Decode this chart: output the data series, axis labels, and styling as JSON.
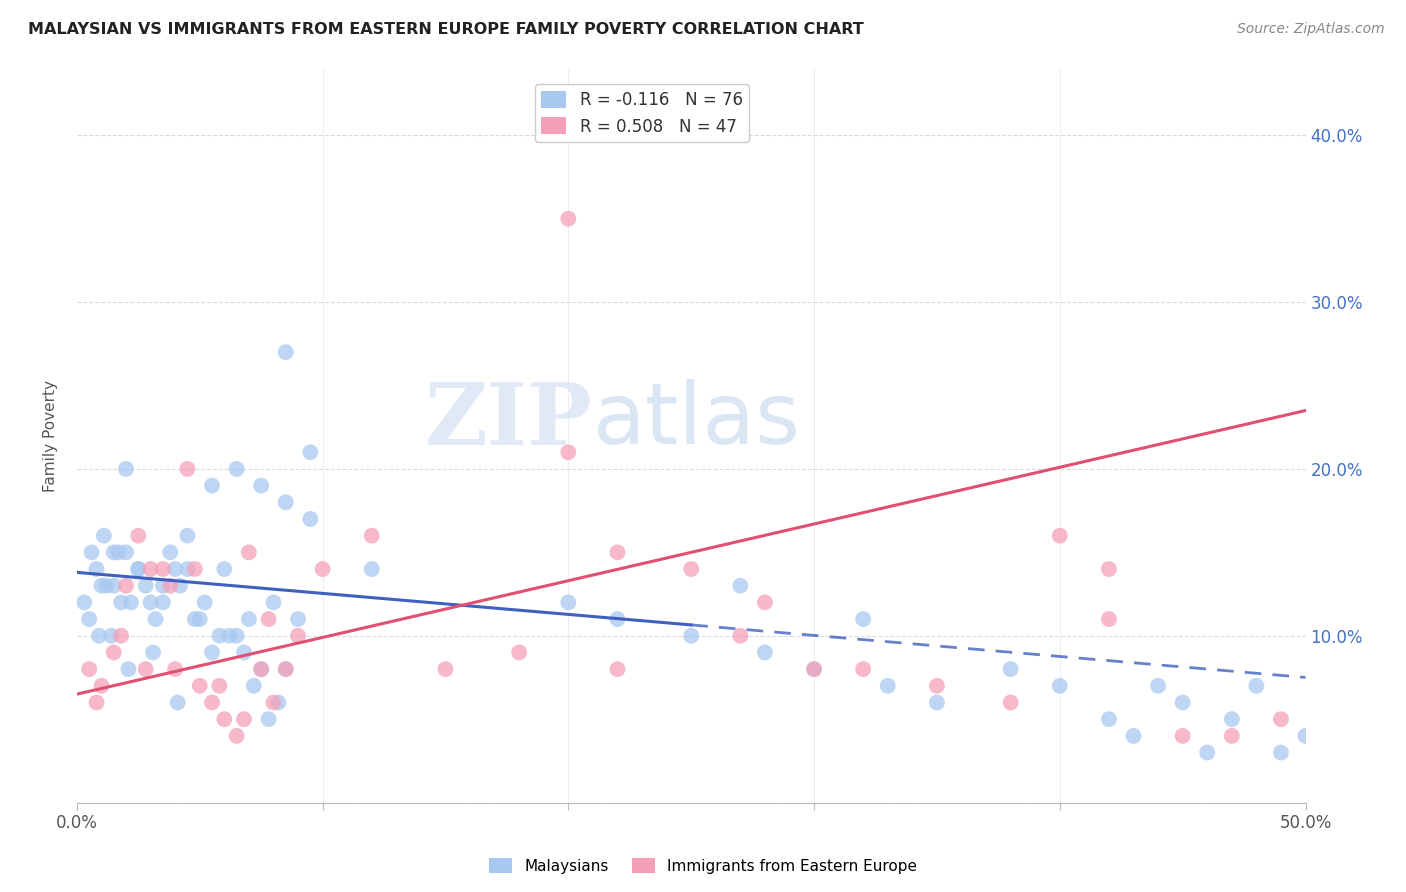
{
  "title": "MALAYSIAN VS IMMIGRANTS FROM EASTERN EUROPE FAMILY POVERTY CORRELATION CHART",
  "source": "Source: ZipAtlas.com",
  "ylabel": "Family Poverty",
  "legend_label1": "R = -0.116   N = 76",
  "legend_label2": "R = 0.508   N = 47",
  "legend_label_bottom1": "Malaysians",
  "legend_label_bottom2": "Immigrants from Eastern Europe",
  "color_blue": "#a8c8f0",
  "color_pink": "#f5a0b8",
  "color_blue_line": "#4060c0",
  "color_pink_line": "#e05070",
  "watermark_zip": "ZIP",
  "watermark_atlas": "atlas",
  "xmin": 0,
  "xmax": 50,
  "ymin": 0,
  "ymax": 44,
  "blue_line_x0": 0.0,
  "blue_line_y0": 13.8,
  "blue_line_x1": 50.0,
  "blue_line_y1": 7.5,
  "blue_solid_end_x": 25.0,
  "pink_line_x0": 0.0,
  "pink_line_y0": 6.5,
  "pink_line_x1": 50.0,
  "pink_line_y1": 23.5,
  "blue_points_x": [
    1.5,
    2.5,
    3.5,
    4.5,
    5.5,
    6.5,
    7.5,
    8.5,
    9.5,
    1.0,
    2.0,
    3.0,
    4.0,
    5.0,
    6.0,
    7.0,
    8.0,
    9.0,
    0.5,
    1.5,
    2.5,
    3.5,
    4.5,
    5.5,
    6.5,
    7.5,
    8.5,
    1.2,
    2.2,
    3.2,
    4.2,
    5.2,
    6.2,
    7.2,
    8.2,
    0.8,
    1.8,
    2.8,
    3.8,
    4.8,
    5.8,
    6.8,
    7.8,
    0.3,
    0.6,
    0.9,
    1.1,
    1.4,
    1.7,
    2.1,
    3.1,
    4.1,
    12.0,
    20.0,
    22.0,
    25.0,
    28.0,
    30.0,
    33.0,
    35.0,
    38.0,
    40.0,
    42.0,
    43.0,
    45.0,
    47.0,
    48.0,
    49.0,
    50.0,
    27.0,
    32.0,
    44.0,
    46.0,
    8.5,
    9.5,
    2.0
  ],
  "blue_points_y": [
    15,
    14,
    13,
    16,
    19,
    20,
    19,
    18,
    21,
    13,
    15,
    12,
    14,
    11,
    14,
    11,
    12,
    11,
    11,
    13,
    14,
    12,
    14,
    9,
    10,
    8,
    8,
    13,
    12,
    11,
    13,
    12,
    10,
    7,
    6,
    14,
    12,
    13,
    15,
    11,
    10,
    9,
    5,
    12,
    15,
    10,
    16,
    10,
    15,
    8,
    9,
    6,
    14,
    12,
    11,
    10,
    9,
    8,
    7,
    6,
    8,
    7,
    5,
    4,
    6,
    5,
    7,
    3,
    4,
    13,
    11,
    7,
    3,
    27,
    17,
    20
  ],
  "pink_points_x": [
    0.5,
    1.0,
    1.5,
    2.0,
    2.5,
    3.0,
    3.5,
    4.0,
    4.5,
    5.0,
    5.5,
    6.0,
    6.5,
    7.0,
    7.5,
    8.0,
    8.5,
    9.0,
    0.8,
    1.8,
    2.8,
    3.8,
    4.8,
    5.8,
    6.8,
    7.8,
    10.0,
    12.0,
    15.0,
    18.0,
    20.0,
    22.0,
    25.0,
    28.0,
    30.0,
    32.0,
    35.0,
    38.0,
    40.0,
    42.0,
    45.0,
    47.0,
    49.0,
    22.0,
    27.0,
    42.0,
    20.0
  ],
  "pink_points_y": [
    8,
    7,
    9,
    13,
    16,
    14,
    14,
    8,
    20,
    7,
    6,
    5,
    4,
    15,
    8,
    6,
    8,
    10,
    6,
    10,
    8,
    13,
    14,
    7,
    5,
    11,
    14,
    16,
    8,
    9,
    21,
    8,
    14,
    12,
    8,
    8,
    7,
    6,
    16,
    11,
    4,
    4,
    5,
    15,
    10,
    14,
    35
  ]
}
